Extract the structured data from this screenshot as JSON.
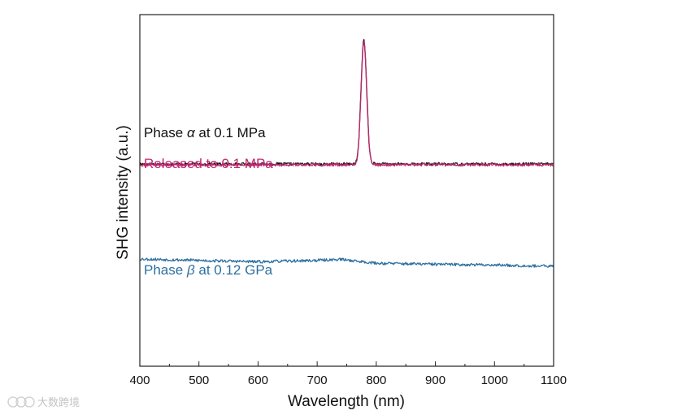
{
  "chart_data": {
    "type": "line",
    "title": "",
    "xlabel": "Wavelength (nm)",
    "ylabel": "SHG intensity (a.u.)",
    "xlim": [
      400,
      1100
    ],
    "ylim": [
      0,
      1
    ],
    "x_ticks": [
      400,
      500,
      600,
      700,
      800,
      900,
      1000,
      1100
    ],
    "y_ticks_shown": false,
    "grid": false,
    "series": [
      {
        "name": "Phase α at 0.1 MPa",
        "legend_prefix": "Phase ",
        "legend_symbol": "α",
        "legend_suffix": " at 0.1 MPa",
        "color": "#111111",
        "baseline": 0.575,
        "noise": 0.004,
        "peak": {
          "center": 779,
          "height": 0.355,
          "fwhm": 11
        },
        "shape": [
          [
            400,
            0.575
          ],
          [
            760,
            0.575
          ],
          [
            769,
            0.58
          ],
          [
            774,
            0.78
          ],
          [
            779,
            0.93
          ],
          [
            784,
            0.78
          ],
          [
            789,
            0.58
          ],
          [
            800,
            0.575
          ],
          [
            1100,
            0.575
          ]
        ]
      },
      {
        "name": "Released to 0.1 MPa",
        "legend_prefix": "Released to 0.1 MPa",
        "legend_symbol": "",
        "legend_suffix": "",
        "color": "#c0266d",
        "baseline": 0.573,
        "noise": 0.004,
        "peak": {
          "center": 779,
          "height": 0.35,
          "fwhm": 11
        },
        "shape": [
          [
            400,
            0.573
          ],
          [
            760,
            0.573
          ],
          [
            769,
            0.578
          ],
          [
            774,
            0.775
          ],
          [
            779,
            0.923
          ],
          [
            784,
            0.775
          ],
          [
            789,
            0.578
          ],
          [
            800,
            0.573
          ],
          [
            1100,
            0.573
          ]
        ]
      },
      {
        "name": "Phase β at 0.12 GPa",
        "legend_prefix": "Phase ",
        "legend_symbol": "β",
        "legend_suffix": " at 0.12 GPa",
        "color": "#2c6fa0",
        "baseline": 0.3,
        "noise": 0.004,
        "peak": null,
        "shape": [
          [
            400,
            0.305
          ],
          [
            500,
            0.301
          ],
          [
            600,
            0.297
          ],
          [
            700,
            0.301
          ],
          [
            740,
            0.304
          ],
          [
            800,
            0.293
          ],
          [
            900,
            0.29
          ],
          [
            1000,
            0.288
          ],
          [
            1100,
            0.284
          ]
        ]
      }
    ],
    "annotations": []
  },
  "watermark": {
    "text": "大数跨境"
  }
}
